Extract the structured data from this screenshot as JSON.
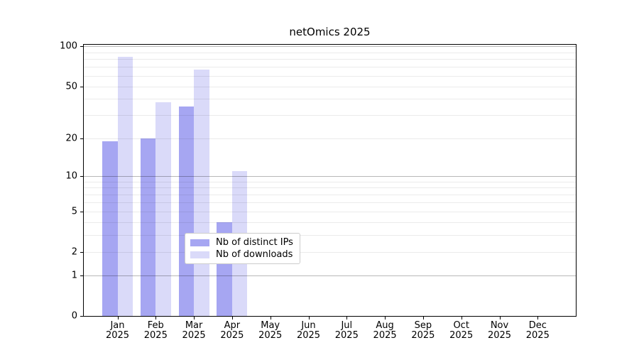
{
  "title": "netOmics 2025",
  "chart_data": {
    "type": "bar",
    "title": "netOmics 2025",
    "scale": "log10(1+x)",
    "categories": [
      "Jan",
      "Feb",
      "Mar",
      "Apr",
      "May",
      "Jun",
      "Jul",
      "Aug",
      "Sep",
      "Oct",
      "Nov",
      "Dec"
    ],
    "year_label": "2025",
    "series": [
      {
        "name": "Nb of distinct IPs",
        "color": "#a6a6f2",
        "values": [
          19,
          20,
          35,
          4,
          0,
          0,
          0,
          0,
          0,
          0,
          0,
          0
        ]
      },
      {
        "name": "Nb of downloads",
        "color": "#dadaf9",
        "values": [
          83,
          38,
          67,
          11,
          0,
          0,
          0,
          0,
          0,
          0,
          0,
          0
        ]
      }
    ],
    "xlabel": "",
    "ylabel": "",
    "ylim": [
      0,
      101
    ],
    "y_ticks": [
      100,
      50,
      20,
      10,
      5,
      2,
      1,
      0
    ],
    "major_gridlines": [
      1,
      10,
      100
    ],
    "minor_gridlines": [
      2,
      3,
      4,
      5,
      6,
      7,
      8,
      9,
      20,
      30,
      40,
      50,
      60,
      70,
      80,
      90
    ],
    "grid": "on",
    "legend_position": "lower center",
    "colors": {
      "grid_major": "rgba(0,0,0,0.28)",
      "grid_minor": "rgba(0,0,0,0.08)",
      "spine": "#000000",
      "text": "#000000",
      "background": "#ffffff"
    }
  }
}
